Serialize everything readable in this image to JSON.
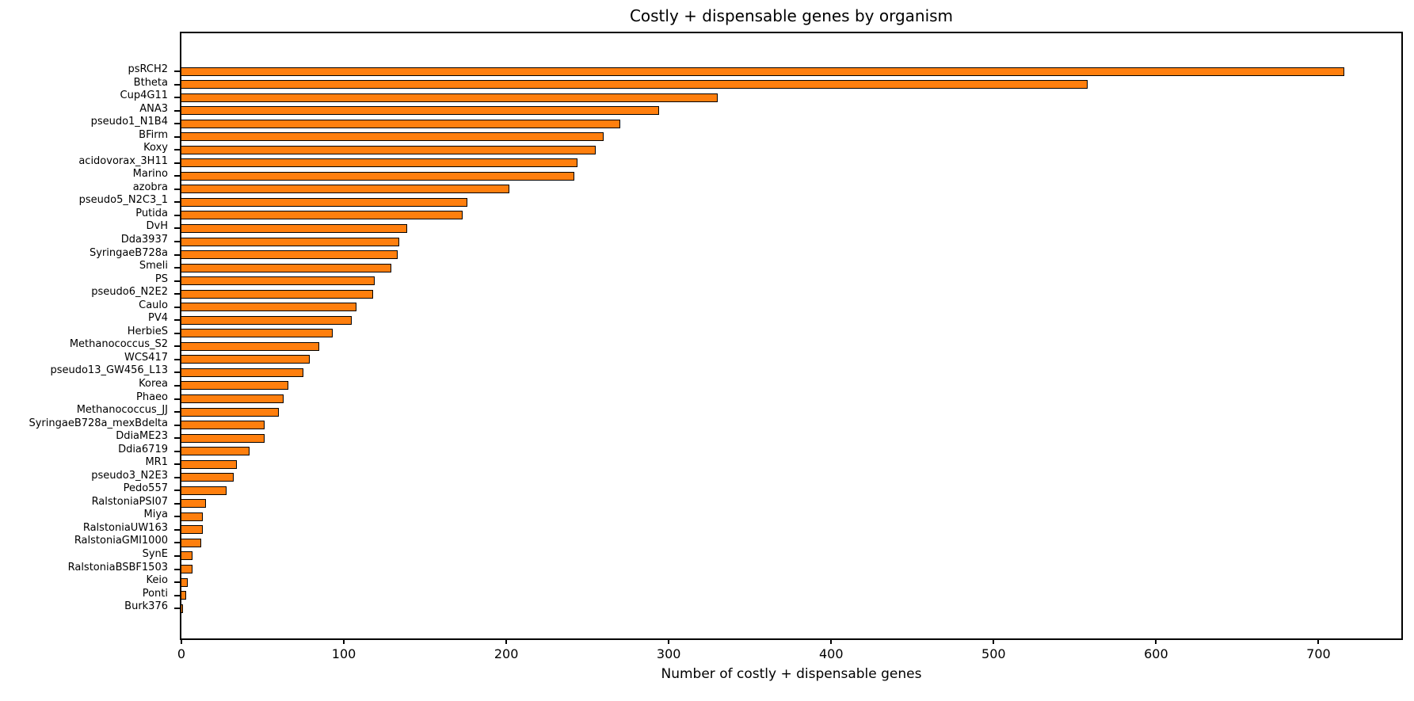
{
  "chart_data": {
    "type": "bar",
    "orientation": "horizontal",
    "title": "Costly + dispensable genes by organism",
    "xlabel": "Number of costly + dispensable genes",
    "ylabel": "",
    "bar_color": "#ff7f0e",
    "bar_edge_color": "#000000",
    "xlim": [
      0,
      751
    ],
    "xticks": [
      0,
      100,
      200,
      300,
      400,
      500,
      600,
      700
    ],
    "grid": false,
    "legend": null,
    "categories": [
      "psRCH2",
      "Btheta",
      "Cup4G11",
      "ANA3",
      "pseudo1_N1B4",
      "BFirm",
      "Koxy",
      "acidovorax_3H11",
      "Marino",
      "azobra",
      "pseudo5_N2C3_1",
      "Putida",
      "DvH",
      "Dda3937",
      "SyringaeB728a",
      "Smeli",
      "PS",
      "pseudo6_N2E2",
      "Caulo",
      "PV4",
      "HerbieS",
      "Methanococcus_S2",
      "WCS417",
      "pseudo13_GW456_L13",
      "Korea",
      "Phaeo",
      "Methanococcus_JJ",
      "SyringaeB728a_mexBdelta",
      "DdiaME23",
      "Ddia6719",
      "MR1",
      "pseudo3_N2E3",
      "Pedo557",
      "RalstoniaPSI07",
      "Miya",
      "RalstoniaUW163",
      "RalstoniaGMI1000",
      "SynE",
      "RalstoniaBSBF1503",
      "Keio",
      "Ponti",
      "Burk376"
    ],
    "values": [
      716,
      558,
      330,
      294,
      270,
      260,
      255,
      244,
      242,
      202,
      176,
      173,
      139,
      134,
      133,
      129,
      119,
      118,
      108,
      105,
      93,
      85,
      79,
      75,
      66,
      63,
      60,
      51,
      51,
      42,
      34,
      32,
      28,
      15,
      13,
      13,
      12,
      7,
      7,
      4,
      3,
      1
    ]
  }
}
